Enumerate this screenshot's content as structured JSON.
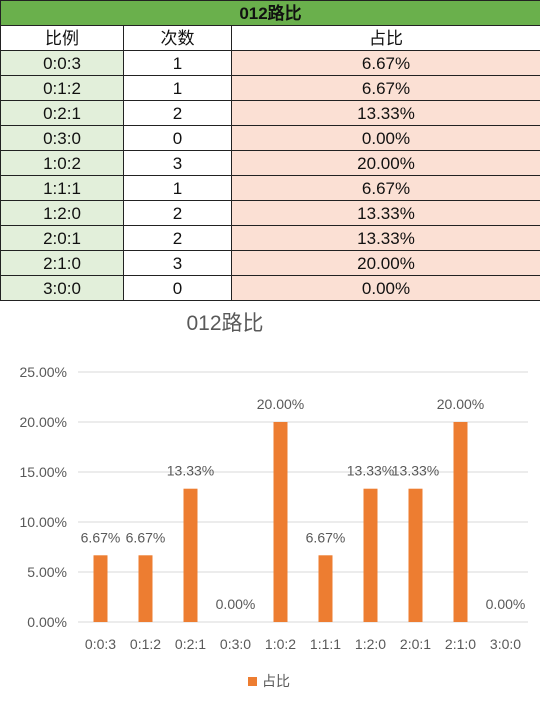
{
  "table": {
    "title": "012路比",
    "headers": [
      "比例",
      "次数",
      "占比"
    ],
    "rows": [
      [
        "0:0:3",
        "1",
        "6.67%"
      ],
      [
        "0:1:2",
        "1",
        "6.67%"
      ],
      [
        "0:2:1",
        "2",
        "13.33%"
      ],
      [
        "0:3:0",
        "0",
        "0.00%"
      ],
      [
        "1:0:2",
        "3",
        "20.00%"
      ],
      [
        "1:1:1",
        "1",
        "6.67%"
      ],
      [
        "1:2:0",
        "2",
        "13.33%"
      ],
      [
        "2:0:1",
        "2",
        "13.33%"
      ],
      [
        "2:1:0",
        "3",
        "20.00%"
      ],
      [
        "3:0:0",
        "0",
        "0.00%"
      ]
    ]
  },
  "chart_data": {
    "type": "bar",
    "title": "012路比",
    "categories": [
      "0:0:3",
      "0:1:2",
      "0:2:1",
      "0:3:0",
      "1:0:2",
      "1:1:1",
      "1:2:0",
      "2:0:1",
      "2:1:0",
      "3:0:0"
    ],
    "series": [
      {
        "name": "占比",
        "values": [
          6.67,
          6.67,
          13.33,
          0,
          20,
          6.67,
          13.33,
          13.33,
          20,
          0
        ]
      }
    ],
    "data_labels": [
      "6.67%",
      "6.67%",
      "13.33%",
      "0.00%",
      "20.00%",
      "6.67%",
      "13.33%",
      "13.33%",
      "20.00%",
      "0.00%"
    ],
    "ytick_labels": [
      "0.00%",
      "5.00%",
      "10.00%",
      "15.00%",
      "20.00%",
      "25.00%"
    ],
    "ylim": [
      0,
      25
    ],
    "yticks": [
      0,
      5,
      10,
      15,
      20,
      25
    ],
    "grid": true,
    "legend": "bottom",
    "colors": {
      "bar": "#ed7d31",
      "grid": "#d9d9d9",
      "text": "#595959"
    }
  }
}
